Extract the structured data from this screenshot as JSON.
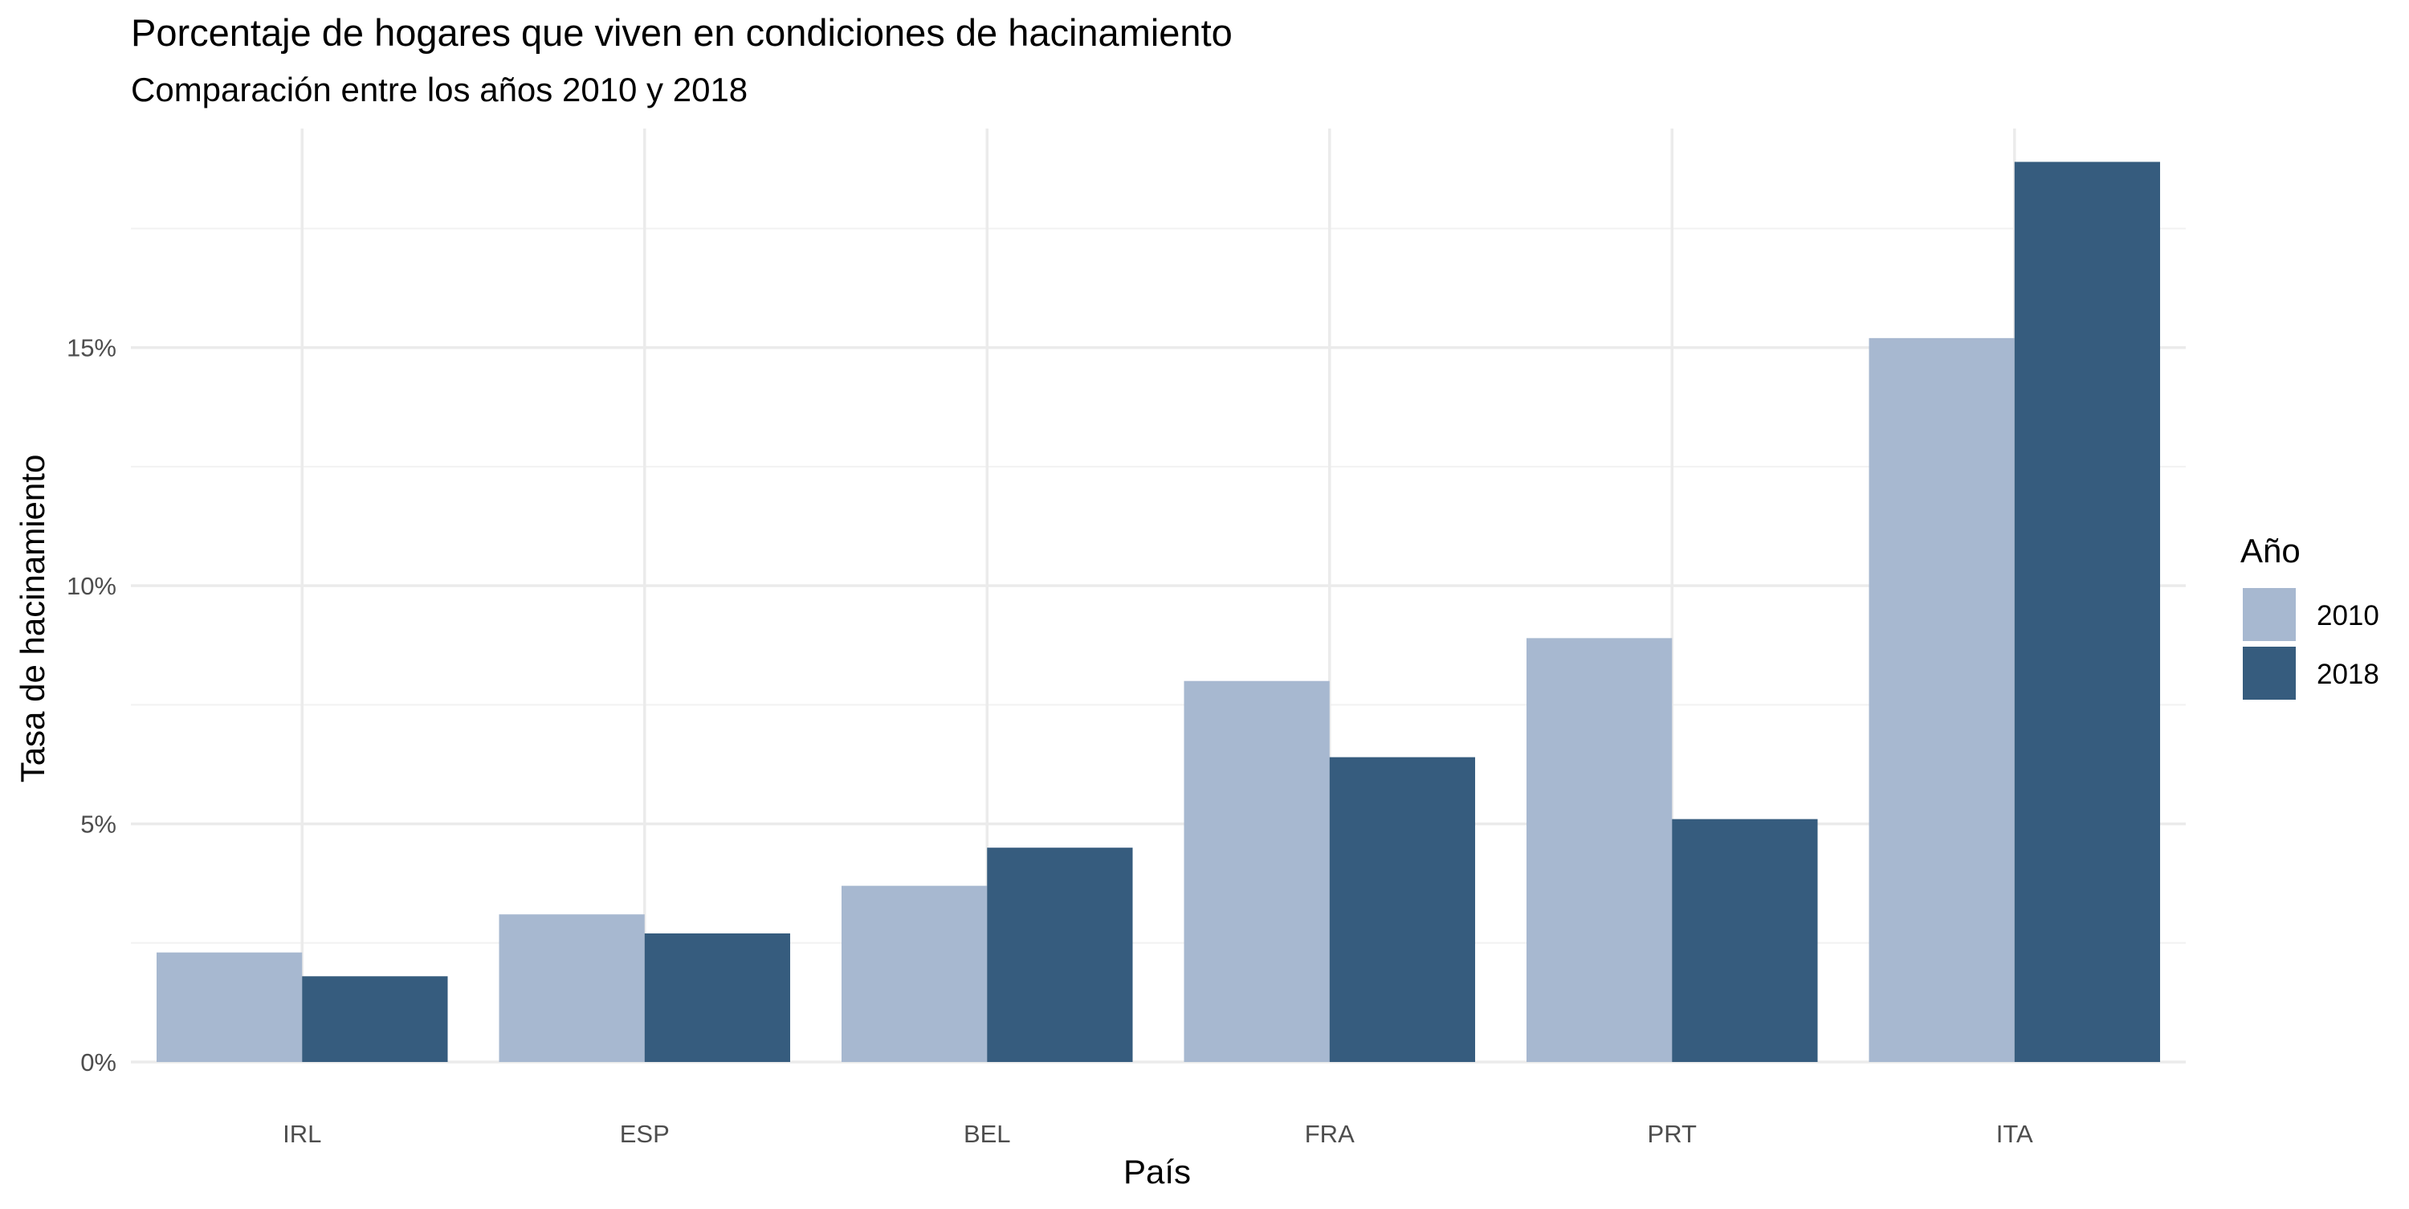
{
  "chart_data": {
    "type": "bar",
    "title": "Porcentaje de hogares que viven en condiciones de hacinamiento",
    "subtitle": "Comparación entre los años 2010 y 2018",
    "xlabel": "País",
    "ylabel": "Tasa de hacinamiento",
    "categories": [
      "IRL",
      "ESP",
      "BEL",
      "FRA",
      "PRT",
      "ITA"
    ],
    "series": [
      {
        "name": "2010",
        "color": "#a7b8d0",
        "values": [
          2.3,
          3.1,
          3.7,
          8.0,
          8.9,
          15.2
        ]
      },
      {
        "name": "2018",
        "color": "#365c7e",
        "values": [
          1.8,
          2.7,
          4.5,
          6.4,
          5.1,
          18.9
        ]
      }
    ],
    "ylim": [
      0,
      19.6
    ],
    "y_ticks": [
      0,
      5,
      10,
      15
    ],
    "y_tick_labels": [
      "0%",
      "5%",
      "10%",
      "15%"
    ],
    "y_minor_ticks": [
      2.5,
      7.5,
      12.5,
      17.5
    ],
    "grid": true,
    "legend": {
      "title": "Año",
      "position": "right"
    }
  }
}
